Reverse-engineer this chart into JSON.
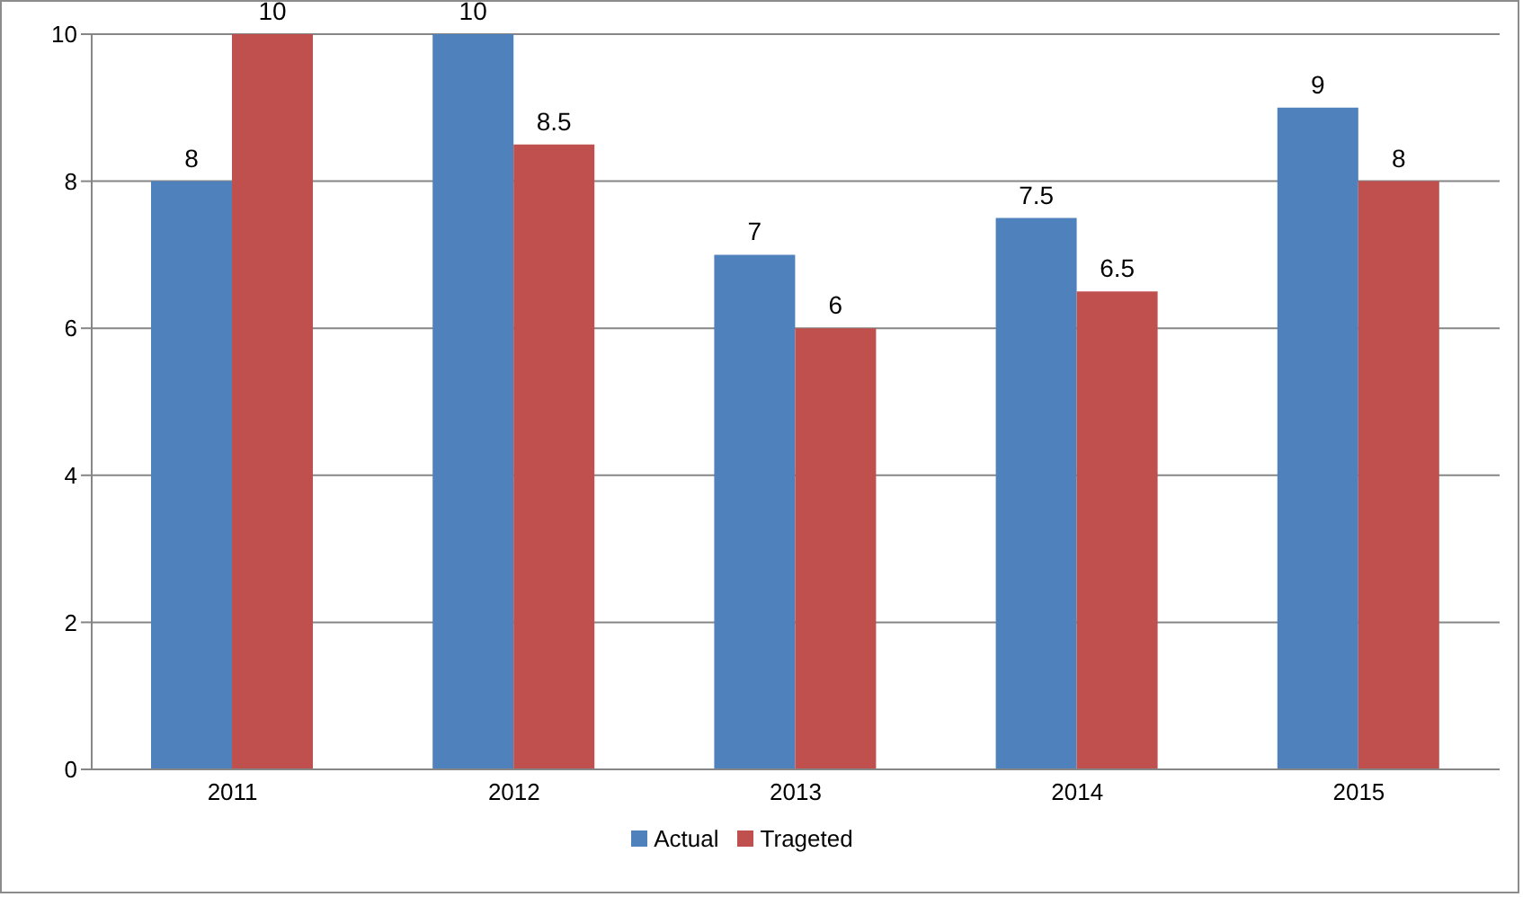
{
  "chart_data": {
    "type": "bar",
    "categories": [
      "2011",
      "2012",
      "2013",
      "2014",
      "2015"
    ],
    "series": [
      {
        "name": "Actual",
        "color": "#4f81bd",
        "values": [
          8,
          10,
          7,
          7.5,
          9
        ]
      },
      {
        "name": "Trageted",
        "color": "#c0504d",
        "values": [
          10,
          8.5,
          6,
          6.5,
          8
        ]
      }
    ],
    "ylim": [
      0,
      10
    ],
    "yticks": [
      0,
      2,
      4,
      6,
      8,
      10
    ],
    "grid": "y",
    "legend": "bottom",
    "data_labels": true
  }
}
